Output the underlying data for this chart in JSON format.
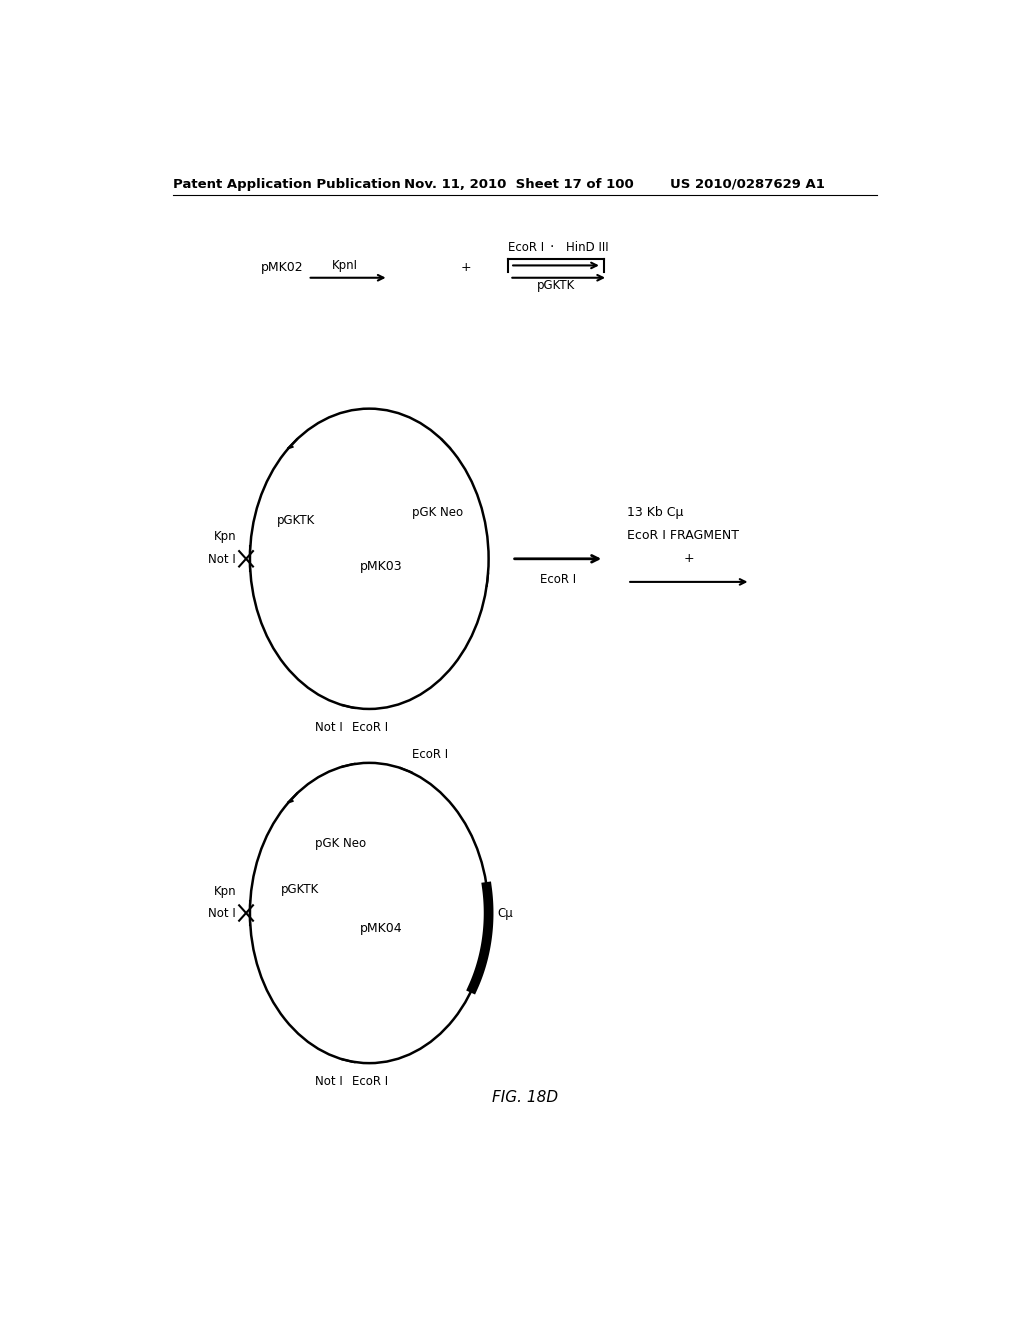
{
  "header_left": "Patent Application Publication",
  "header_mid": "Nov. 11, 2010  Sheet 17 of 100",
  "header_right": "US 2010/0287629 A1",
  "caption": "FIG. 18D",
  "bg_color": "#ffffff",
  "text_color": "#000000"
}
